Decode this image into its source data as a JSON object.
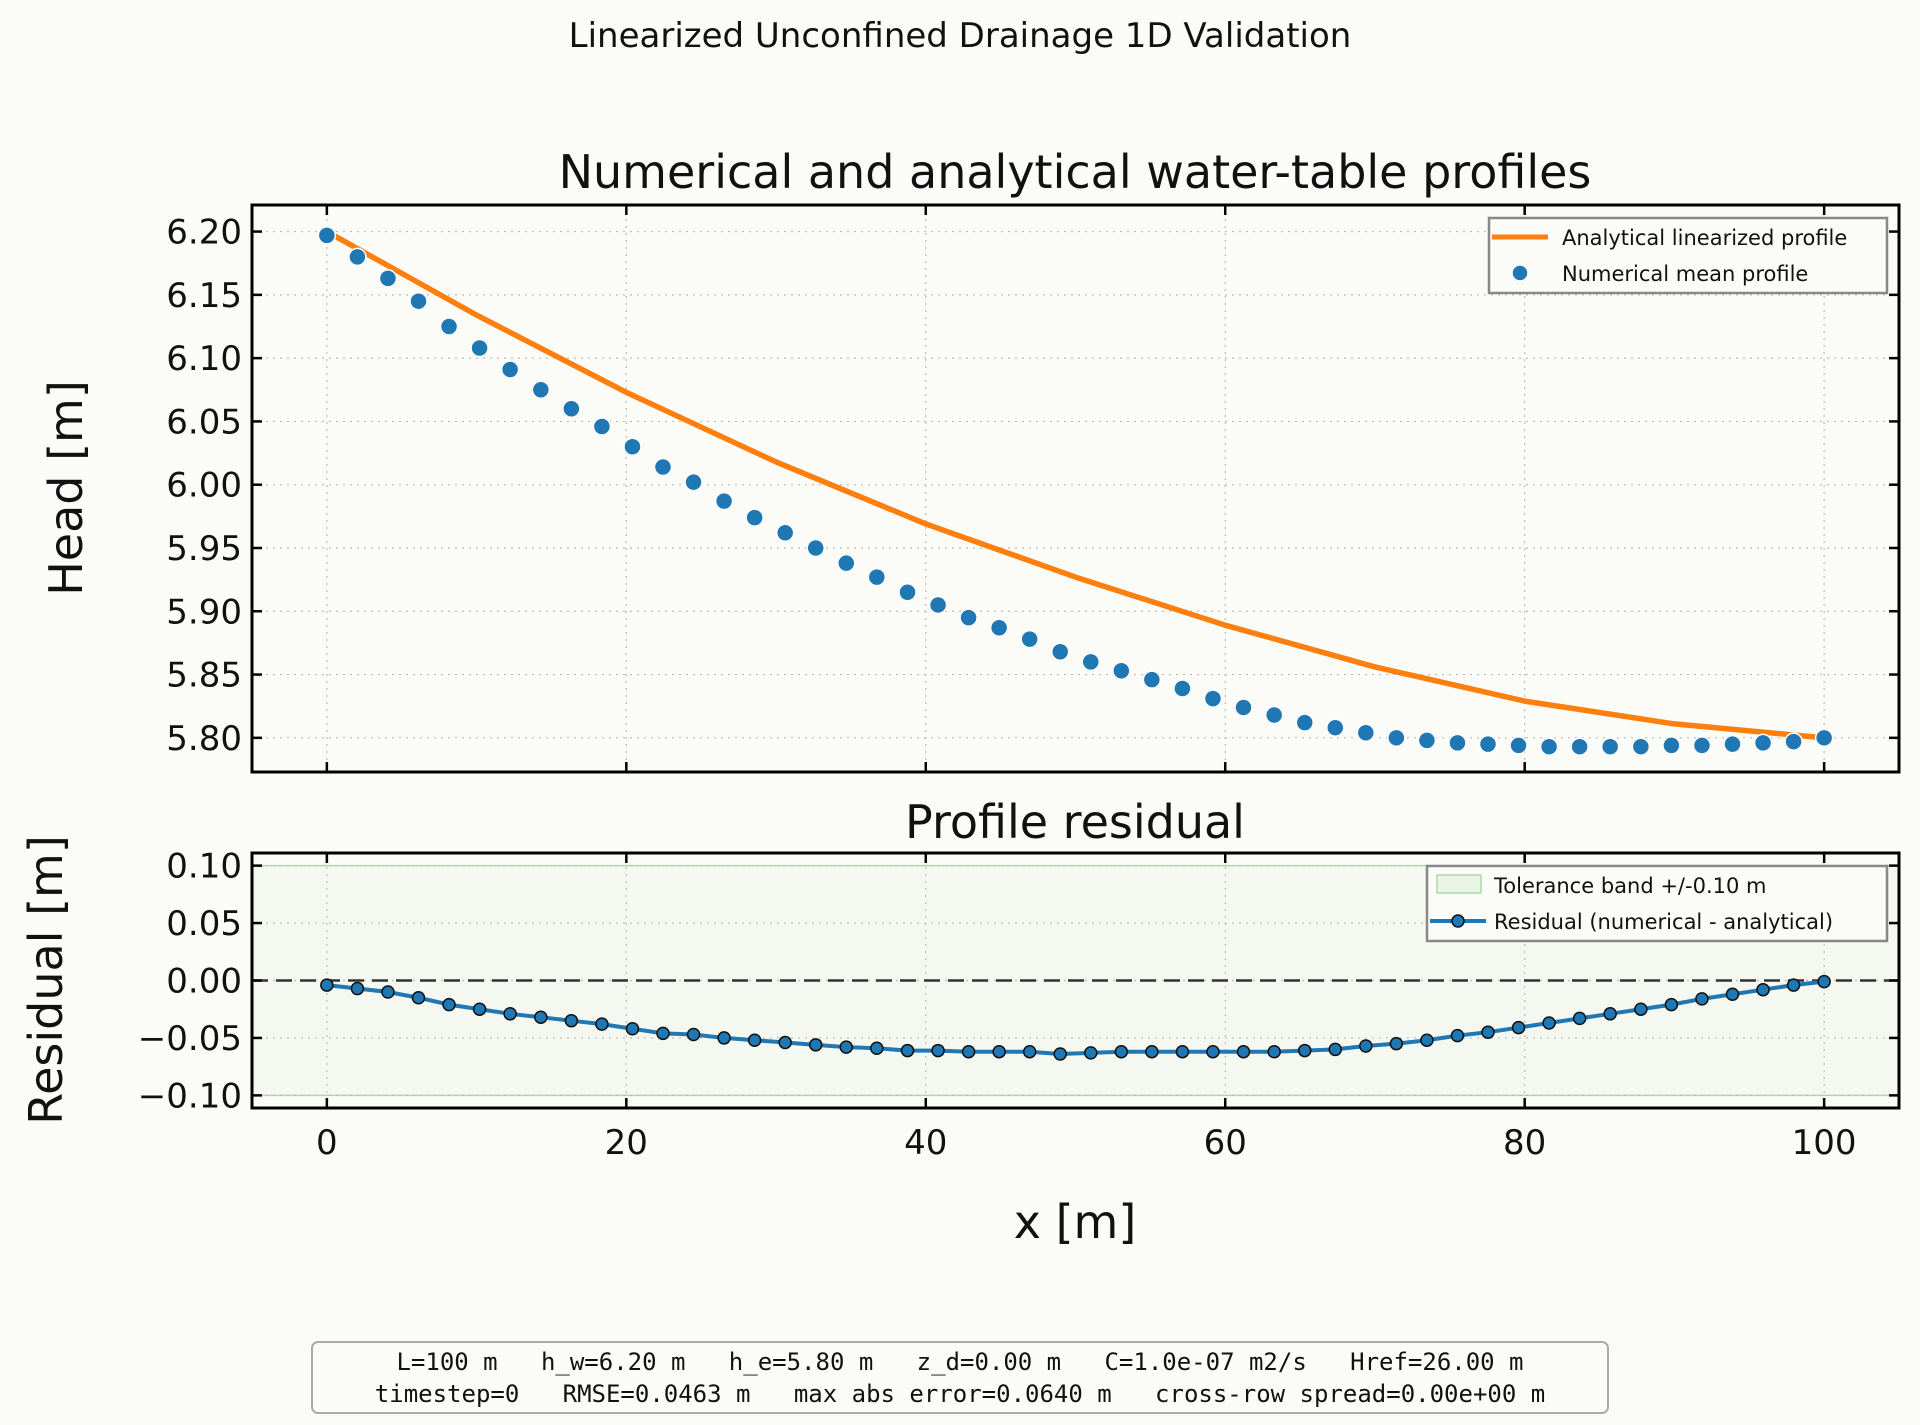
{
  "figure": {
    "suptitle": "Linearized Unconfined Drainage 1D Validation",
    "info_lines": [
      "L=100 m   h_w=6.20 m   h_e=5.80 m   z_d=0.00 m   C=1.0e-07 m2/s   Href=26.00 m",
      "timestep=0   RMSE=0.0463 m   max abs error=0.0640 m   cross-row spread=0.00e+00 m"
    ]
  },
  "chart_data": [
    {
      "type": "line",
      "title": "Numerical and analytical water-table profiles",
      "xlabel": "",
      "ylabel": "Head [m]",
      "xlim": [
        -5,
        105
      ],
      "ylim": [
        5.773,
        6.221
      ],
      "xticks": [
        0,
        20,
        40,
        60,
        80,
        100
      ],
      "yticks": [
        "5.80",
        "5.85",
        "5.90",
        "5.95",
        "6.00",
        "6.05",
        "6.10",
        "6.15",
        "6.20"
      ],
      "grid": true,
      "legend_position": "top-right",
      "colors": {
        "analytical": "#ff7f0e",
        "numerical": "#1f77b4"
      },
      "series": [
        {
          "name": "Analytical linearized profile",
          "style": "line",
          "x": [
            0,
            10,
            20,
            30,
            40,
            50,
            60,
            70,
            80,
            90,
            100
          ],
          "y": [
            6.2,
            6.134,
            6.073,
            6.018,
            5.969,
            5.927,
            5.889,
            5.856,
            5.829,
            5.811,
            5.8
          ]
        },
        {
          "name": "Numerical mean profile",
          "style": "scatter",
          "x": [
            0,
            2.04,
            4.08,
            6.12,
            8.16,
            10.2,
            12.24,
            14.29,
            16.33,
            18.37,
            20.41,
            22.45,
            24.49,
            26.53,
            28.57,
            30.61,
            32.65,
            34.69,
            36.73,
            38.78,
            40.82,
            42.86,
            44.9,
            46.94,
            48.98,
            51.02,
            53.06,
            55.1,
            57.14,
            59.18,
            61.22,
            63.27,
            65.31,
            67.35,
            69.39,
            71.43,
            73.47,
            75.51,
            77.55,
            79.59,
            81.63,
            83.67,
            85.71,
            87.76,
            89.8,
            91.84,
            93.88,
            95.92,
            97.96,
            100
          ],
          "y": [
            6.197,
            6.18,
            6.163,
            6.145,
            6.125,
            6.108,
            6.091,
            6.075,
            6.06,
            6.046,
            6.03,
            6.014,
            6.002,
            5.987,
            5.974,
            5.962,
            5.95,
            5.938,
            5.927,
            5.915,
            5.905,
            5.895,
            5.887,
            5.878,
            5.868,
            5.86,
            5.853,
            5.846,
            5.839,
            5.831,
            5.824,
            5.818,
            5.812,
            5.808,
            5.804,
            5.8,
            5.798,
            5.796,
            5.795,
            5.794,
            5.793,
            5.793,
            5.793,
            5.793,
            5.794,
            5.794,
            5.795,
            5.796,
            5.797,
            5.8
          ]
        }
      ]
    },
    {
      "type": "line",
      "title": "Profile residual",
      "xlabel": "x [m]",
      "ylabel": "Residual [m]",
      "xlim": [
        -5,
        105
      ],
      "ylim": [
        -0.111,
        0.111
      ],
      "xticks": [
        0,
        20,
        40,
        60,
        80,
        100
      ],
      "yticks": [
        "−0.10",
        "−0.05",
        "0.00",
        "0.05",
        "0.10"
      ],
      "grid": true,
      "legend_position": "top-right",
      "tolerance_band": {
        "name": "Tolerance band +/-0.10 m",
        "lower": -0.1,
        "upper": 0.1,
        "color": "#2ca02c"
      },
      "zero_line": 0,
      "colors": {
        "residual": "#1f77b4"
      },
      "series": [
        {
          "name": "Residual (numerical - analytical)",
          "style": "line-markers",
          "x": [
            0,
            2.04,
            4.08,
            6.12,
            8.16,
            10.2,
            12.24,
            14.29,
            16.33,
            18.37,
            20.41,
            22.45,
            24.49,
            26.53,
            28.57,
            30.61,
            32.65,
            34.69,
            36.73,
            38.78,
            40.82,
            42.86,
            44.9,
            46.94,
            48.98,
            51.02,
            53.06,
            55.1,
            57.14,
            59.18,
            61.22,
            63.27,
            65.31,
            67.35,
            69.39,
            71.43,
            73.47,
            75.51,
            77.55,
            79.59,
            81.63,
            83.67,
            85.71,
            87.76,
            89.8,
            91.84,
            93.88,
            95.92,
            97.96,
            100
          ],
          "y": [
            -0.004,
            -0.007,
            -0.01,
            -0.015,
            -0.021,
            -0.025,
            -0.029,
            -0.032,
            -0.035,
            -0.038,
            -0.042,
            -0.046,
            -0.047,
            -0.05,
            -0.052,
            -0.054,
            -0.056,
            -0.058,
            -0.059,
            -0.061,
            -0.061,
            -0.062,
            -0.062,
            -0.062,
            -0.064,
            -0.063,
            -0.062,
            -0.062,
            -0.062,
            -0.062,
            -0.062,
            -0.062,
            -0.061,
            -0.06,
            -0.057,
            -0.055,
            -0.052,
            -0.048,
            -0.045,
            -0.041,
            -0.037,
            -0.033,
            -0.029,
            -0.025,
            -0.021,
            -0.016,
            -0.012,
            -0.008,
            -0.004,
            -0.001
          ]
        }
      ]
    }
  ]
}
